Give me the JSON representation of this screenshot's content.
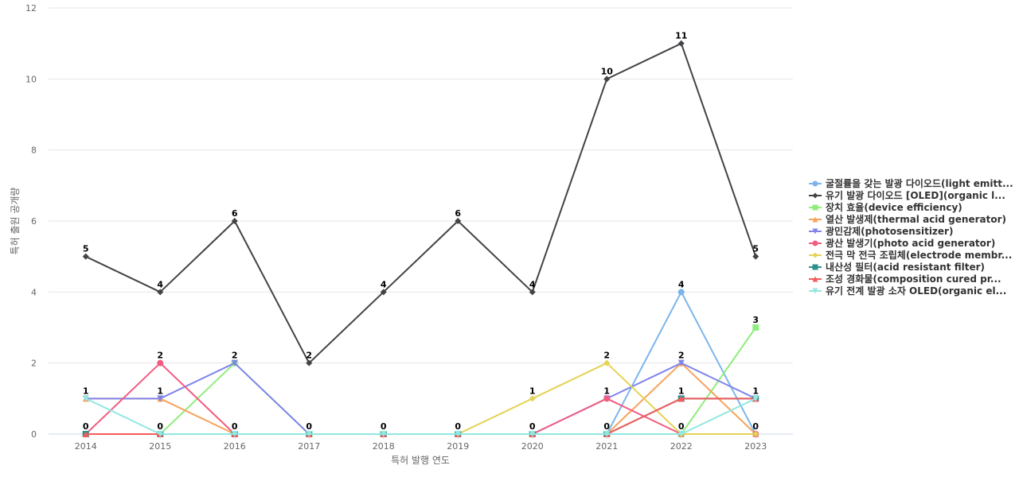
{
  "chart_data": {
    "type": "line",
    "title": "",
    "xlabel": "특허 발행 연도",
    "ylabel": "특허 출원 공개량",
    "x": [
      "2014",
      "2015",
      "2016",
      "2017",
      "2018",
      "2019",
      "2020",
      "2021",
      "2022",
      "2023"
    ],
    "ylim": [
      0,
      12
    ],
    "yticks": [
      "0",
      "2",
      "4",
      "6",
      "8",
      "10",
      "12"
    ],
    "grid": true,
    "legend_position": "right",
    "series": [
      {
        "name": "굴절률을 갖는 발광 다이오드(light emitt...",
        "color": "#7cb5ec",
        "marker": "circle",
        "values": [
          0,
          0,
          0,
          0,
          0,
          0,
          0,
          0,
          4,
          0
        ]
      },
      {
        "name": "유기 발광 다이오드 [OLED](organic l...",
        "color": "#434348",
        "marker": "diamond",
        "values": [
          5,
          4,
          6,
          2,
          4,
          6,
          4,
          10,
          11,
          5
        ]
      },
      {
        "name": "장치 효율(device efficiency)",
        "color": "#90ed7d",
        "marker": "square",
        "values": [
          0,
          0,
          2,
          0,
          0,
          0,
          0,
          0,
          0,
          3
        ]
      },
      {
        "name": "열산 발생제(thermal acid generator)",
        "color": "#f7a35c",
        "marker": "triangle",
        "values": [
          1,
          1,
          0,
          0,
          0,
          0,
          0,
          0,
          2,
          0
        ]
      },
      {
        "name": "광민감제(photosensitizer)",
        "color": "#8085e9",
        "marker": "triangle-down",
        "values": [
          1,
          1,
          2,
          0,
          0,
          0,
          0,
          1,
          2,
          1
        ]
      },
      {
        "name": "광산 발생기(photo acid generator)",
        "color": "#f15c80",
        "marker": "circle",
        "values": [
          0,
          2,
          0,
          0,
          0,
          0,
          0,
          1,
          0,
          0
        ]
      },
      {
        "name": "전극 막 전극 조립체(electrode membr...",
        "color": "#e4d354",
        "marker": "diamond",
        "values": [
          0,
          0,
          0,
          0,
          0,
          0,
          1,
          2,
          0,
          0
        ]
      },
      {
        "name": "내산성 필터(acid resistant filter)",
        "color": "#2b908f",
        "marker": "square",
        "values": [
          0,
          0,
          0,
          0,
          0,
          0,
          0,
          0,
          1,
          1
        ]
      },
      {
        "name": "조성 경화물(composition cured pr...",
        "color": "#f45b5b",
        "marker": "triangle",
        "values": [
          0,
          0,
          0,
          0,
          0,
          0,
          0,
          0,
          1,
          1
        ]
      },
      {
        "name": "유기 전계 발광 소자 OLED(organic el...",
        "color": "#91e8e1",
        "marker": "triangle-down",
        "values": [
          1,
          0,
          0,
          0,
          0,
          0,
          0,
          0,
          0,
          1
        ]
      }
    ],
    "data_labels": [
      {
        "x": "2014",
        "y": 5,
        "text": "5"
      },
      {
        "x": "2014",
        "y": 1,
        "text": "1"
      },
      {
        "x": "2014",
        "y": 0,
        "text": "0"
      },
      {
        "x": "2015",
        "y": 4,
        "text": "4"
      },
      {
        "x": "2015",
        "y": 2,
        "text": "2"
      },
      {
        "x": "2015",
        "y": 1,
        "text": "1"
      },
      {
        "x": "2015",
        "y": 0,
        "text": "0"
      },
      {
        "x": "2016",
        "y": 6,
        "text": "6"
      },
      {
        "x": "2016",
        "y": 2,
        "text": "2"
      },
      {
        "x": "2016",
        "y": 0,
        "text": "0"
      },
      {
        "x": "2017",
        "y": 2,
        "text": "2"
      },
      {
        "x": "2017",
        "y": 0,
        "text": "0"
      },
      {
        "x": "2018",
        "y": 4,
        "text": "4"
      },
      {
        "x": "2018",
        "y": 0,
        "text": "0"
      },
      {
        "x": "2019",
        "y": 6,
        "text": "6"
      },
      {
        "x": "2019",
        "y": 0,
        "text": "0"
      },
      {
        "x": "2020",
        "y": 4,
        "text": "4"
      },
      {
        "x": "2020",
        "y": 1,
        "text": "1"
      },
      {
        "x": "2020",
        "y": 0,
        "text": "0"
      },
      {
        "x": "2021",
        "y": 10,
        "text": "10"
      },
      {
        "x": "2021",
        "y": 2,
        "text": "2"
      },
      {
        "x": "2021",
        "y": 1,
        "text": "1"
      },
      {
        "x": "2021",
        "y": 0,
        "text": "0"
      },
      {
        "x": "2022",
        "y": 11,
        "text": "11"
      },
      {
        "x": "2022",
        "y": 4,
        "text": "4"
      },
      {
        "x": "2022",
        "y": 2,
        "text": "2"
      },
      {
        "x": "2022",
        "y": 1,
        "text": "1"
      },
      {
        "x": "2022",
        "y": 0,
        "text": "0"
      },
      {
        "x": "2023",
        "y": 5,
        "text": "5"
      },
      {
        "x": "2023",
        "y": 3,
        "text": "3"
      },
      {
        "x": "2023",
        "y": 1,
        "text": "1"
      },
      {
        "x": "2023",
        "y": 0,
        "text": "0"
      }
    ]
  }
}
